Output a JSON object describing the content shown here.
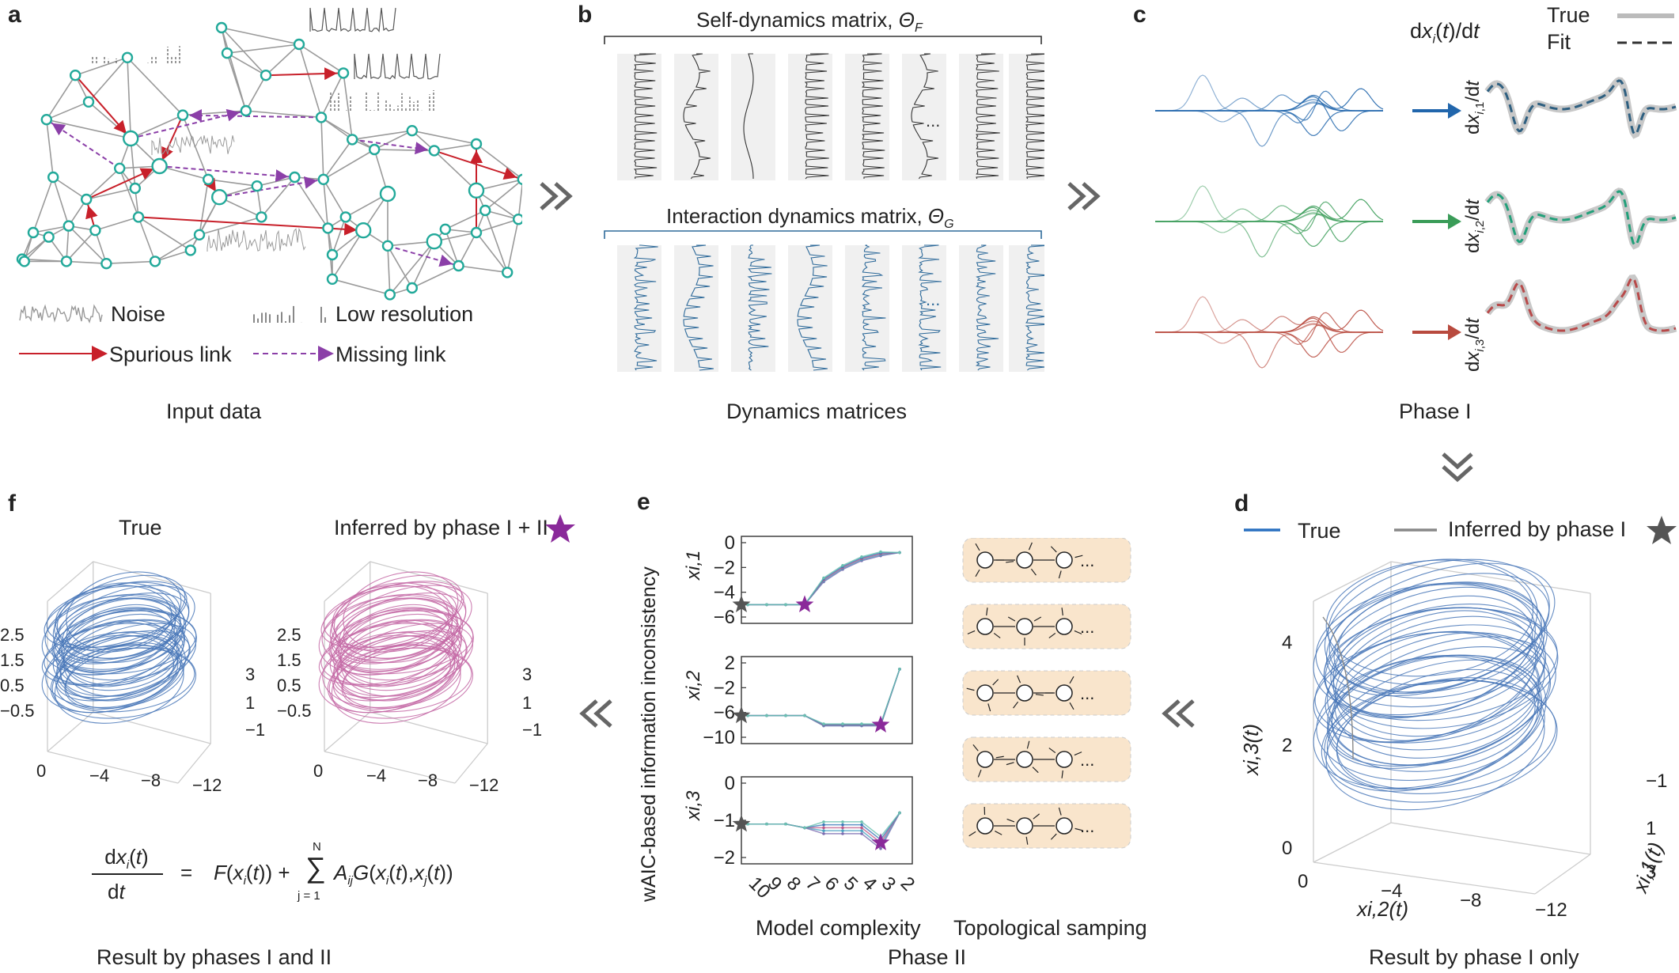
{
  "panel_labels": {
    "a": "a",
    "b": "b",
    "c": "c",
    "d": "d",
    "e": "e",
    "f": "f"
  },
  "panel_a": {
    "legend": {
      "noise": "Noise",
      "low_resolution": "Low resolution",
      "spurious_link": "Spurious link",
      "missing_link": "Missing link"
    },
    "caption": "Input data",
    "colors": {
      "node": "#22a99a",
      "edge": "#9a9a9a",
      "spurious": "#c8202a",
      "missing": "#8b3fa8"
    }
  },
  "panel_b": {
    "self_title": "Self-dynamics matrix, ",
    "self_symbol": "Θ",
    "self_sub": "F",
    "interaction_title": "Interaction dynamics matrix, ",
    "interaction_symbol": "Θ",
    "interaction_sub": "G",
    "ellipsis": "...",
    "caption": "Dynamics matrices",
    "colors": {
      "self": "#333333",
      "interaction": "#2e6a9a"
    }
  },
  "panel_c": {
    "header": "dxi(t)/dt",
    "legend_true": "True",
    "legend_fit": "Fit",
    "row_labels": [
      "dxi,1/dt",
      "dxi,2/dt",
      "dxi,3/dt"
    ],
    "caption": "Phase I",
    "colors": {
      "row1": "#2166ac",
      "row2": "#3a9c58",
      "row3": "#b84a3e"
    }
  },
  "panel_d": {
    "legend_true": "True",
    "legend_inferred": "Inferred by phase I",
    "z_label": "xi,3(t)",
    "x_label": "xi,2(t)",
    "y_label": "xi,1(t)",
    "z_ticks": [
      "0",
      "2",
      "4"
    ],
    "x_ticks": [
      "0",
      "−4",
      "−8",
      "−12"
    ],
    "y_ticks": [
      "3",
      "1",
      "−1"
    ],
    "caption": "Result by phase I only",
    "color": "#4a78b8"
  },
  "panel_e": {
    "ylabel": "wAIC-based information inconsistency",
    "xlabel": "Model complexity",
    "topo_label": "Topological samping",
    "caption": "Phase II",
    "x_ticks": [
      "10",
      "9",
      "8",
      "7",
      "6",
      "5",
      "4",
      "3",
      "2"
    ],
    "subplots": [
      {
        "label": "xi,1",
        "yticks": [
          "0",
          "−2",
          "−4",
          "−6"
        ]
      },
      {
        "label": "xi,2",
        "yticks": [
          "2",
          "−2",
          "−6",
          "−10"
        ]
      },
      {
        "label": "xi,3",
        "yticks": [
          "0",
          "−1",
          "−2"
        ]
      }
    ],
    "ellipsis": "..."
  },
  "panel_f": {
    "true_title": "True",
    "inferred_title": "Inferred by phase I + II",
    "z_ticks": [
      "2.5",
      "1.5",
      "0.5",
      "−0.5"
    ],
    "x_ticks": [
      "0",
      "−4",
      "−8",
      "−12"
    ],
    "y_ticks": [
      "3",
      "1",
      "−1"
    ],
    "equation": {
      "lhs_num": "dxi(t)",
      "lhs_den": "dt",
      "eq": "=",
      "rhs": "F(xi(t)) + Σ AijG(xi(t),xj(t))",
      "sum_top": "N",
      "sum_bottom": "j = 1"
    },
    "caption": "Result by phases I and II",
    "colors": {
      "true": "#4a78b8",
      "inferred": "#c46aa6"
    }
  },
  "star_colors": {
    "gray": "#555555",
    "purple": "#8a2a9a"
  }
}
